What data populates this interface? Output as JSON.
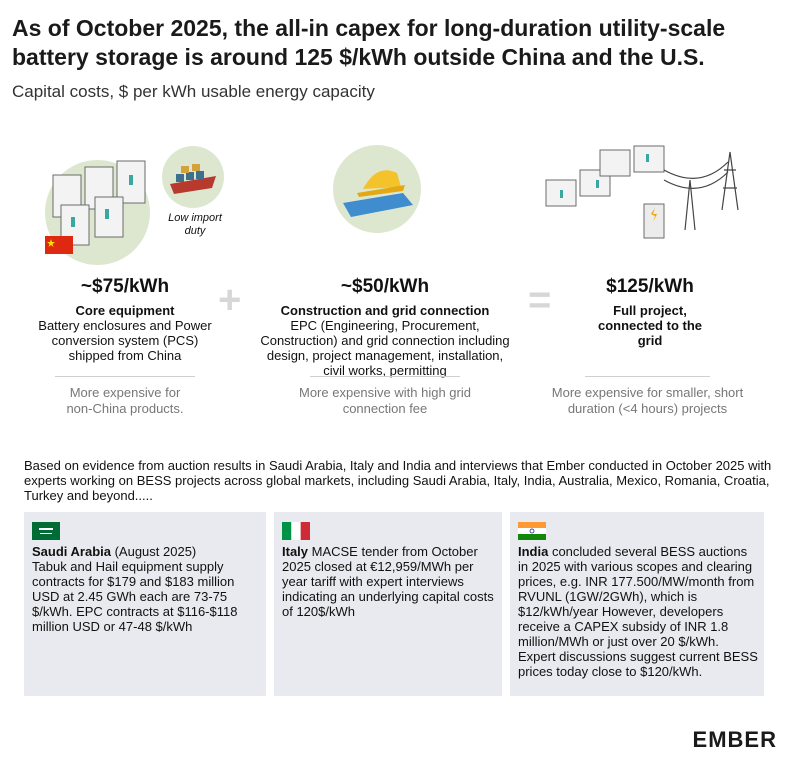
{
  "header": {
    "title": "As of October 2025, the all-in capex for long-duration utility-scale battery storage is around 125 $/kWh outside China and the U.S.",
    "subtitle": "Capital costs, $ per kWh usable energy capacity"
  },
  "columns": [
    {
      "price": "~$75/kWh",
      "heading": "Core equipment",
      "description": "Battery enclosures and Power conversion system (PCS) shipped from China",
      "note": "More expensive for non-China products.",
      "badge": "Low import duty"
    },
    {
      "price": "~$50/kWh",
      "heading": "Construction and grid connection",
      "description": "EPC (Engineering, Procurement, Construction) and grid connection including design, project management, installation, civil works, permitting",
      "note": "More expensive with high grid connection fee"
    },
    {
      "price": "$125/kWh",
      "heading": "Full project, connected to the grid",
      "description": "",
      "note": "More expensive for smaller, short duration (<4 hours) projects"
    }
  ],
  "operators": {
    "plus": "+",
    "equals": "="
  },
  "evidence": "Based on evidence from auction results in Saudi Arabia, Italy and India and interviews that Ember conducted in October 2025 with experts working on BESS projects across global markets, including Saudi Arabia, Italy, India, Australia, Mexico, Romania, Croatia, Turkey and beyond.....",
  "cards": [
    {
      "country": "Saudi Arabia",
      "lead": " (August 2025)",
      "text": "Tabuk and Hail equipment supply contracts for $179 and $183 million USD at 2.45 GWh each are 73-75 $/kWh. EPC contracts at $116-$118 million USD or 47-48 $/kWh"
    },
    {
      "country": "Italy",
      "lead": "",
      "text": " MACSE tender from October 2025 closed at €12,959/MWh per year tariff with expert interviews indicating an underlying capital costs of 120$/kWh"
    },
    {
      "country": "India",
      "lead": "",
      "text": " concluded several BESS auctions in 2025 with various scopes and clearing prices, e.g. INR 177.500/MW/month from RVUNL (1GW/2GWh), which is $12/kWh/year However, developers receive a CAPEX subsidy of INR 1.8 million/MWh or just over 20 $/kWh. Expert discussions suggest current BESS prices today close to $120/kWh."
    }
  ],
  "logo": "EMBER"
}
